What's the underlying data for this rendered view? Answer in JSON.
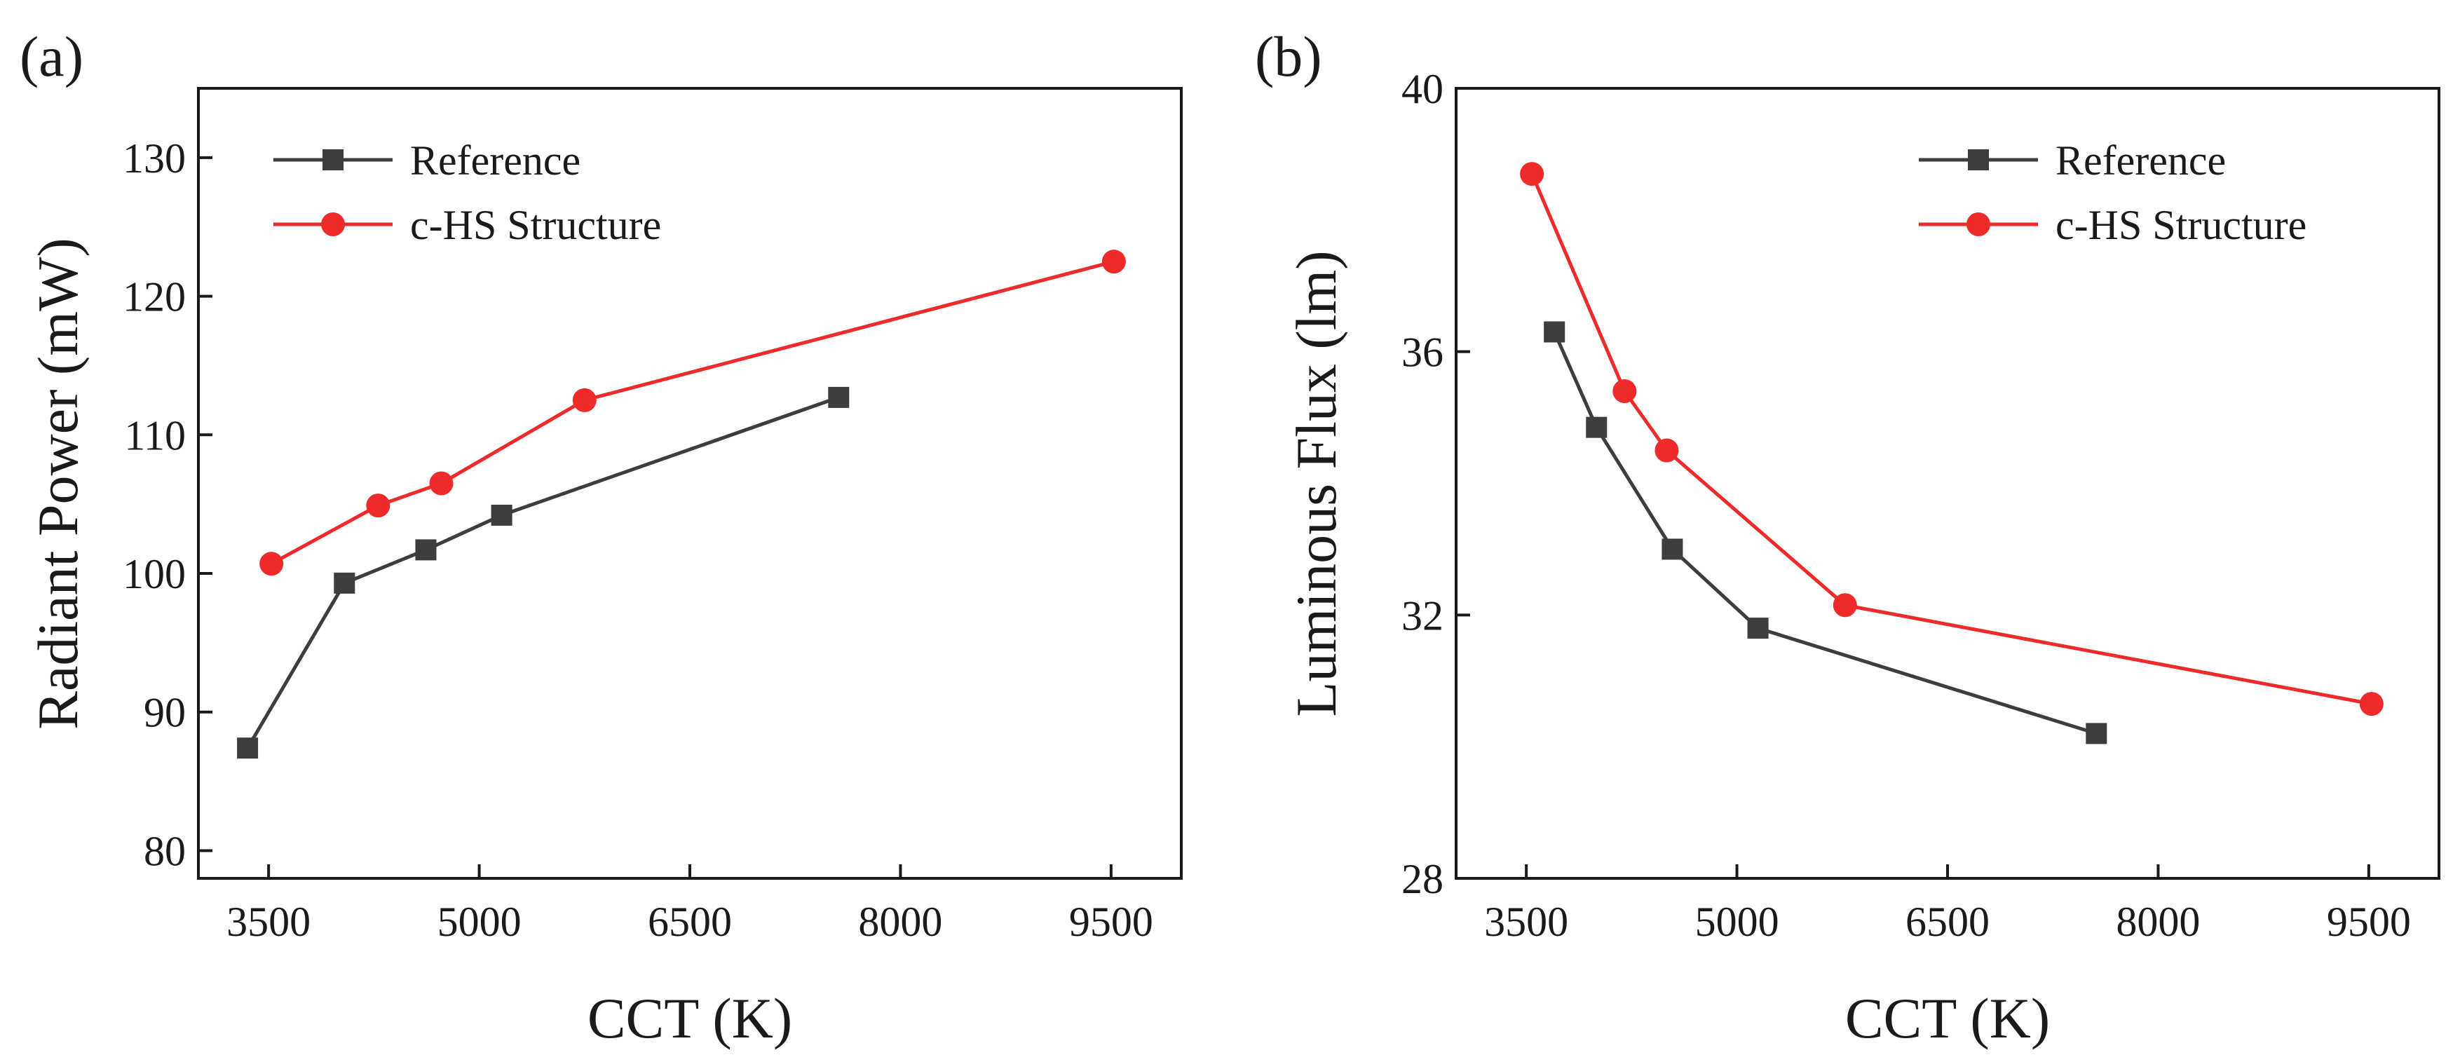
{
  "chart_data": [
    {
      "type": "line",
      "panel_label": "(a)",
      "title": "",
      "xlabel": "CCT (K)",
      "ylabel": "Radiant Power (mW)",
      "xlim": [
        3000,
        10000
      ],
      "ylim": [
        78,
        135
      ],
      "x_ticks": [
        3500,
        5000,
        6500,
        8000,
        9500
      ],
      "x_tick_labels": [
        "3500",
        "5000",
        "6500",
        "8000",
        "9500"
      ],
      "y_ticks": [
        80,
        90,
        100,
        110,
        120,
        130
      ],
      "y_tick_labels": [
        "80",
        "90",
        "100",
        "110",
        "120",
        "130"
      ],
      "legend_position": "top-left",
      "series": [
        {
          "name": "Reference",
          "color": "#3d3d3d",
          "marker": "square",
          "x": [
            3350,
            4040,
            4620,
            5160,
            7560
          ],
          "y": [
            87.4,
            99.3,
            101.7,
            104.2,
            112.7
          ]
        },
        {
          "name": "c-HS Structure",
          "color": "#ee2a2a",
          "marker": "circle",
          "x": [
            3520,
            4280,
            4730,
            5750,
            9520
          ],
          "y": [
            100.7,
            104.9,
            106.5,
            112.5,
            122.5
          ]
        }
      ]
    },
    {
      "type": "line",
      "panel_label": "(b)",
      "title": "",
      "xlabel": "CCT (K)",
      "ylabel": "Luminous Flux (lm)",
      "xlim": [
        3000,
        10000
      ],
      "ylim": [
        28,
        40
      ],
      "x_ticks": [
        3500,
        5000,
        6500,
        8000,
        9500
      ],
      "x_tick_labels": [
        "3500",
        "5000",
        "6500",
        "8000",
        "9500"
      ],
      "y_ticks": [
        28,
        32,
        36,
        40
      ],
      "y_tick_labels": [
        "28",
        "32",
        "36",
        "40"
      ],
      "legend_position": "top-right",
      "series": [
        {
          "name": "Reference",
          "color": "#3d3d3d",
          "marker": "square",
          "x": [
            3700,
            4000,
            4540,
            5150,
            7560
          ],
          "y": [
            36.3,
            34.85,
            33.0,
            31.8,
            30.2
          ]
        },
        {
          "name": "c-HS Structure",
          "color": "#ee2a2a",
          "marker": "circle",
          "x": [
            3540,
            4200,
            4500,
            5770,
            9520
          ],
          "y": [
            38.7,
            35.4,
            34.5,
            32.15,
            30.65
          ]
        }
      ]
    }
  ]
}
